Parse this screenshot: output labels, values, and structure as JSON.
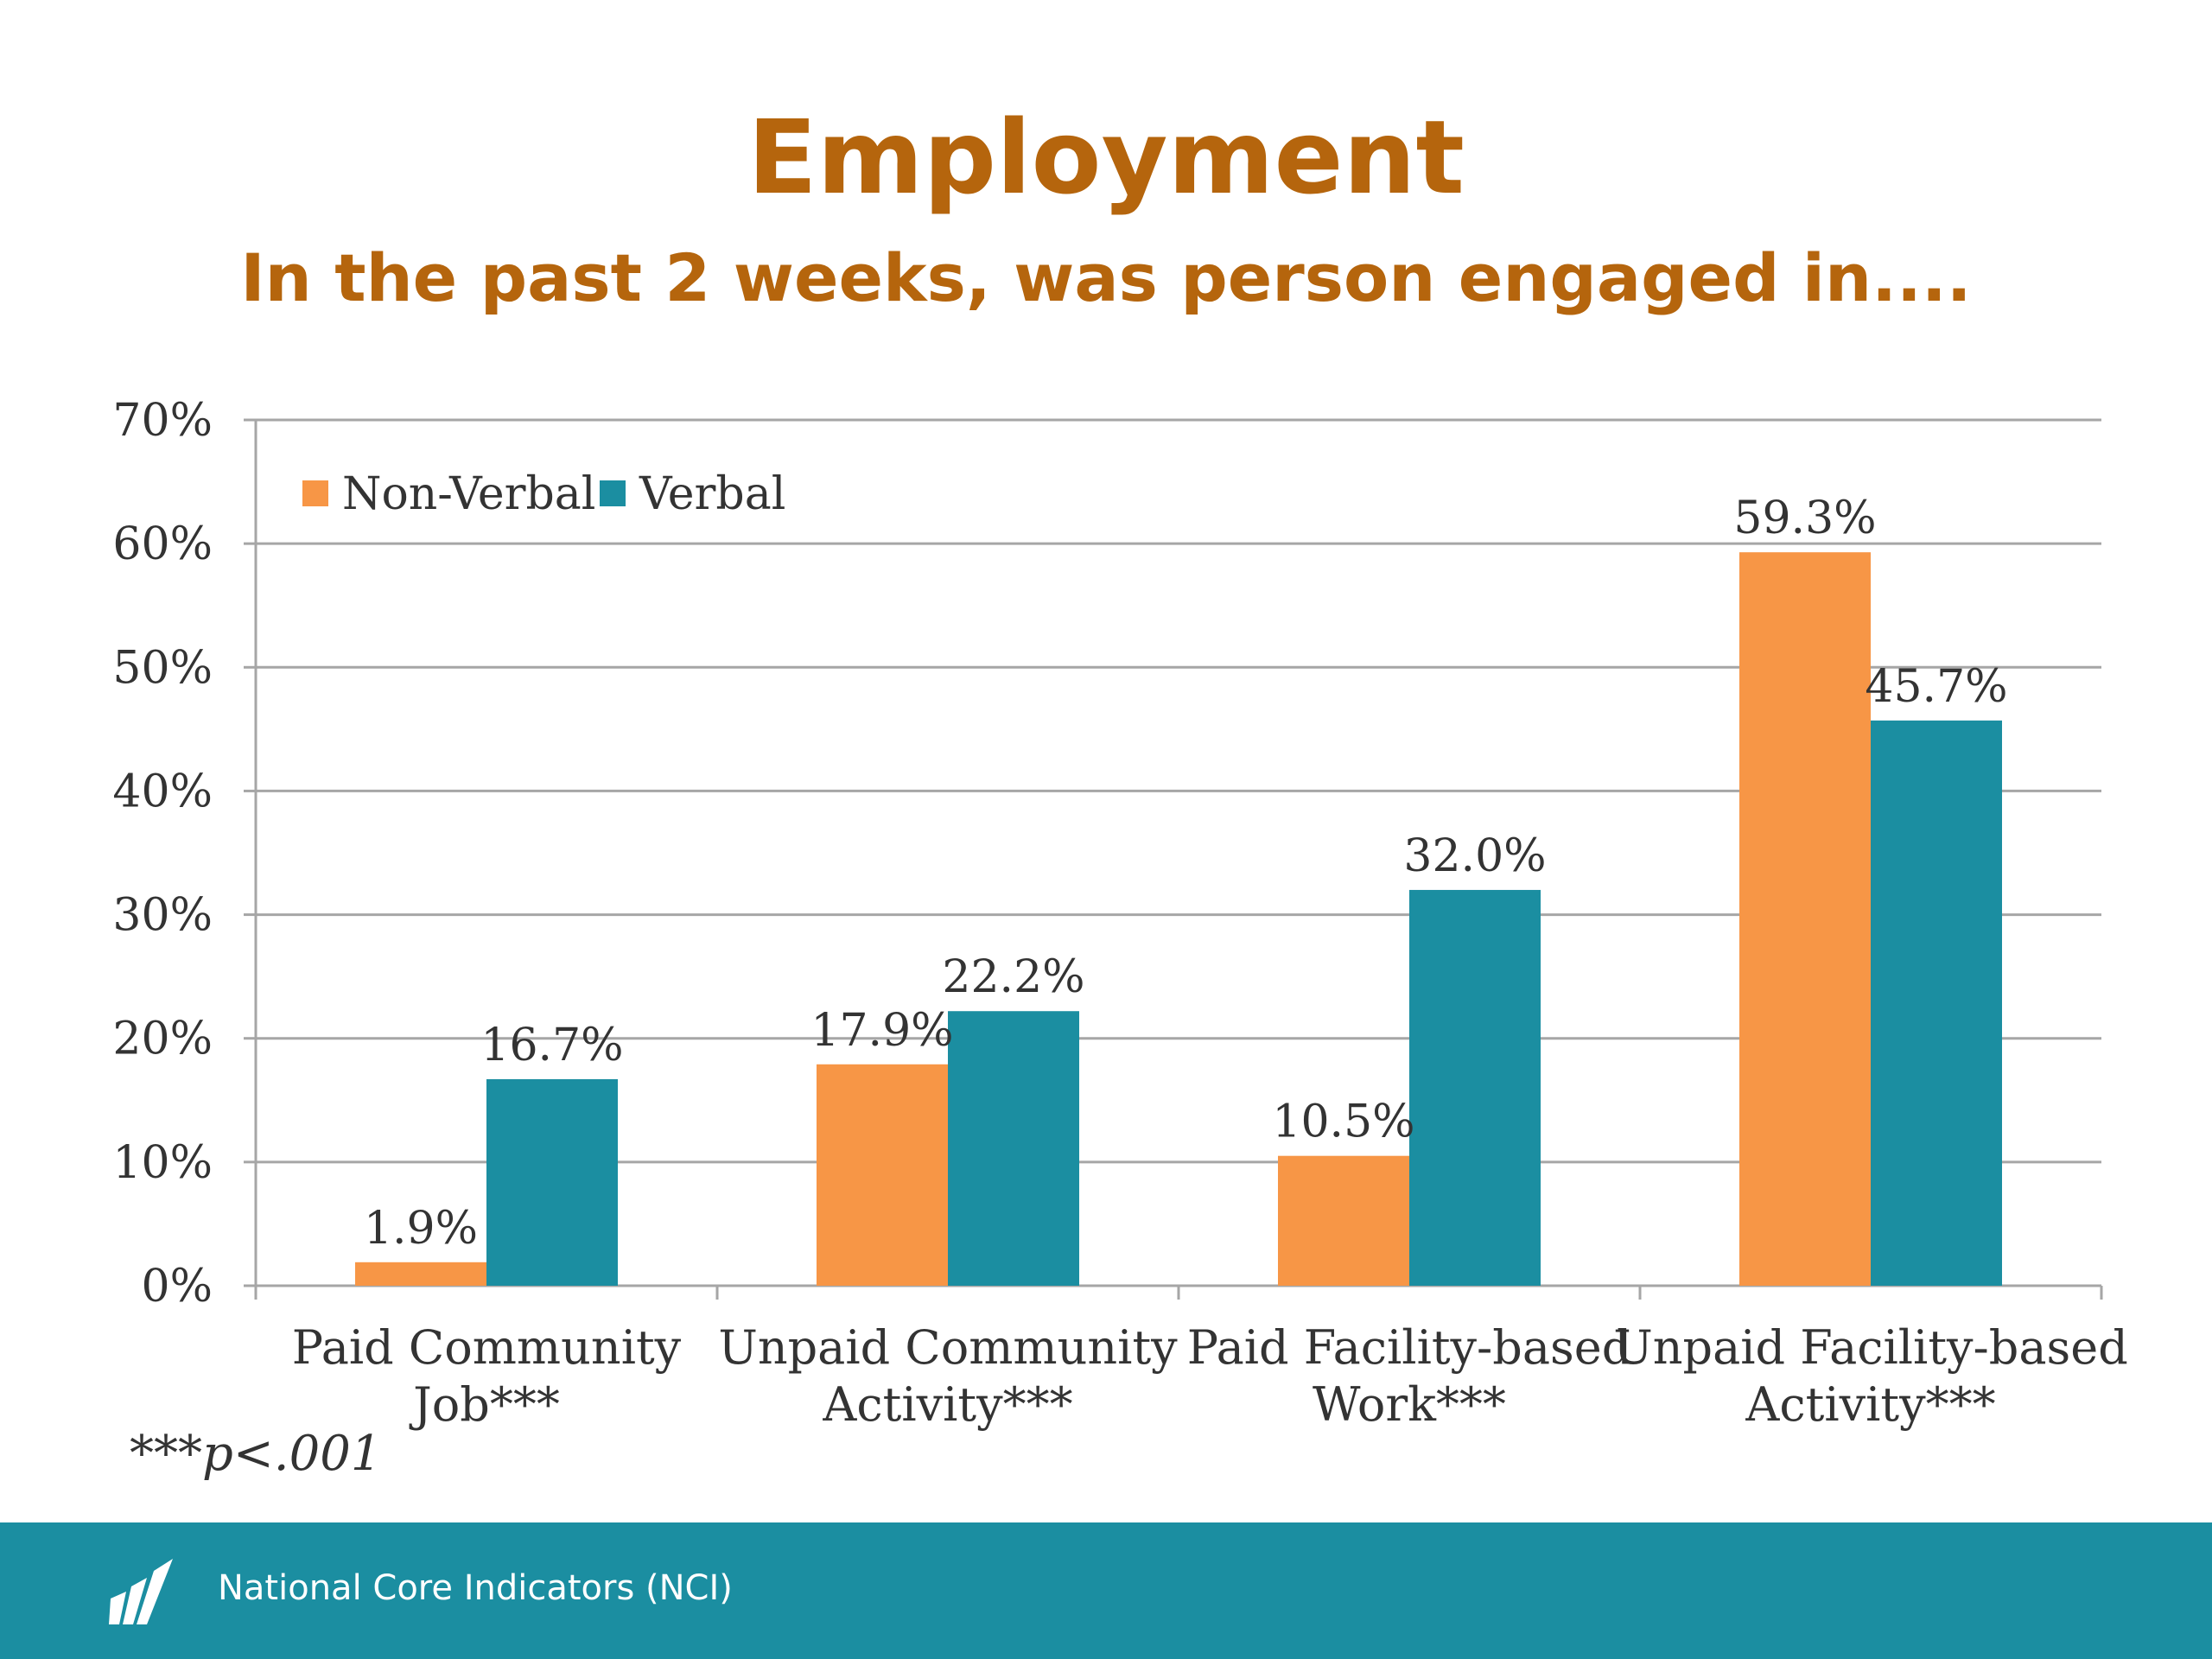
{
  "page": {
    "title": "Employment",
    "subtitle": "In the past 2 weeks, was person engaged in....",
    "footnote": "***p<.001"
  },
  "footer": {
    "org_name": "National Core Indicators (NCI)",
    "background_color": "#1b8ea1"
  },
  "chart_data": {
    "type": "bar",
    "title": "Employment",
    "subtitle": "In the past 2 weeks, was person engaged in....",
    "categories": [
      [
        "Paid Community",
        "Job***"
      ],
      [
        "Unpaid Community",
        "Activity***"
      ],
      [
        "Paid Facility-based",
        "Work***"
      ],
      [
        "Unpaid Facility-based",
        "Activity***"
      ]
    ],
    "series": [
      {
        "name": "Non-Verbal",
        "color": "#f79646",
        "values": [
          1.9,
          17.9,
          10.5,
          59.3
        ],
        "labels": [
          "1.9%",
          "17.9%",
          "10.5%",
          "59.3%"
        ]
      },
      {
        "name": "Verbal",
        "color": "#1b8ea1",
        "values": [
          16.7,
          22.2,
          32.0,
          45.7
        ],
        "labels": [
          "16.7%",
          "22.2%",
          "32.0%",
          "45.7%"
        ]
      }
    ],
    "ylim": [
      0,
      70
    ],
    "yticks": [
      0,
      10,
      20,
      30,
      40,
      50,
      60,
      70
    ],
    "ytick_labels": [
      "0%",
      "10%",
      "20%",
      "30%",
      "40%",
      "50%",
      "60%",
      "70%"
    ],
    "grid": true,
    "legend_position": "top-left"
  }
}
